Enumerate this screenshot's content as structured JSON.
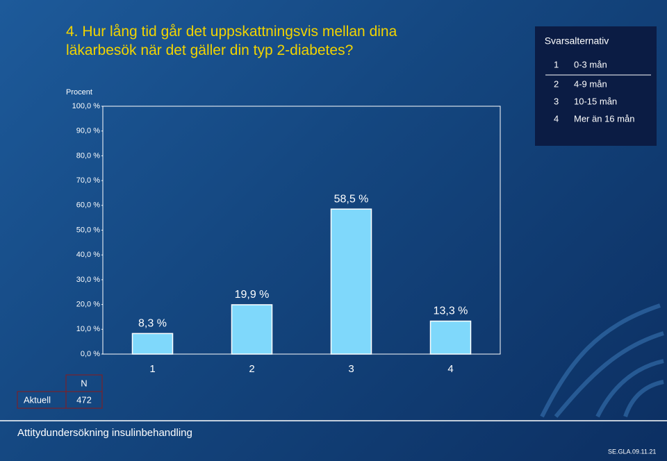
{
  "chart_data": {
    "type": "bar",
    "title": "4. Hur lång tid går det uppskattningsvis mellan dina läkarbesök när det gäller din typ 2-diabetes?",
    "y_label": "Procent",
    "categories": [
      "1",
      "2",
      "3",
      "4"
    ],
    "values": [
      8.3,
      19.9,
      58.5,
      13.3
    ],
    "value_labels": [
      "8,3 %",
      "19,9 %",
      "58,5 %",
      "13,3 %"
    ],
    "color": "#7fd8fb",
    "ylim": [
      0,
      100
    ],
    "yticks": [
      {
        "value": 0,
        "label": "0,0 %"
      },
      {
        "value": 10,
        "label": "10,0 %"
      },
      {
        "value": 20,
        "label": "20,0 %"
      },
      {
        "value": 30,
        "label": "30,0 %"
      },
      {
        "value": 40,
        "label": "40,0 %"
      },
      {
        "value": 50,
        "label": "50,0 %"
      },
      {
        "value": 60,
        "label": "60,0 %"
      },
      {
        "value": 70,
        "label": "70,0 %"
      },
      {
        "value": 80,
        "label": "80,0 %"
      },
      {
        "value": 90,
        "label": "90,0 %"
      },
      {
        "value": 100,
        "label": "100,0 %"
      }
    ],
    "legend": {
      "title": "Svarsalternativ",
      "labels": [
        "0-3 mån",
        "4-9 mån",
        "10-15 mån",
        "Mer än 16 mån"
      ]
    }
  },
  "table": {
    "header": "N",
    "row_label": "Aktuell",
    "value": "472"
  },
  "footer": {
    "text": "Attitydundersökning insulinbehandling",
    "code": "SE.GLA.09.11.21"
  }
}
